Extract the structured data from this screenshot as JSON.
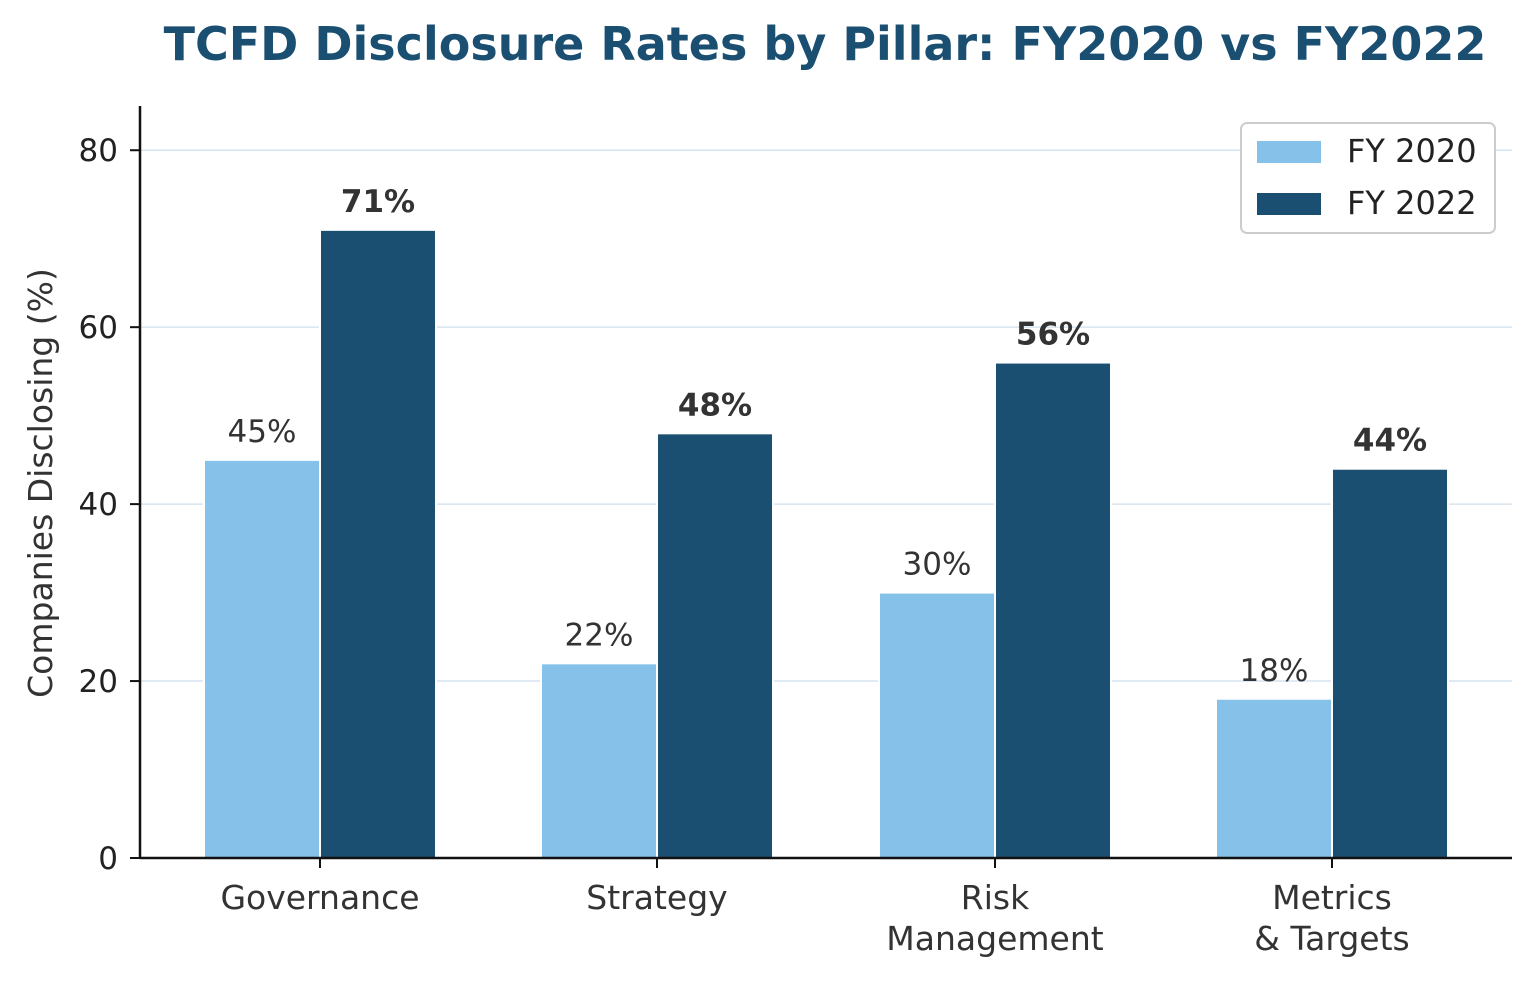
{
  "chart_data": {
    "type": "bar",
    "title": "TCFD Disclosure Rates by Pillar: FY2020 vs FY2022",
    "xlabel": "",
    "ylabel": "Companies Disclosing (%)",
    "ylim": [
      0,
      85
    ],
    "yticks": [
      "0",
      "20",
      "40",
      "60",
      "80"
    ],
    "grid": "horizontal",
    "legend_position": "top-right",
    "categories": [
      [
        "Governance"
      ],
      [
        "Strategy"
      ],
      [
        "Risk",
        "Management"
      ],
      [
        "Metrics",
        "& Targets"
      ]
    ],
    "series": [
      {
        "name": "FY 2020",
        "color": "#85c1e9",
        "values": [
          45,
          22,
          30,
          18
        ],
        "labels": [
          "45%",
          "22%",
          "30%",
          "18%"
        ],
        "label_weight": "normal"
      },
      {
        "name": "FY 2022",
        "color": "#1b4f72",
        "values": [
          71,
          48,
          56,
          44
        ],
        "labels": [
          "71%",
          "48%",
          "56%",
          "44%"
        ],
        "label_weight": "bold"
      }
    ]
  }
}
